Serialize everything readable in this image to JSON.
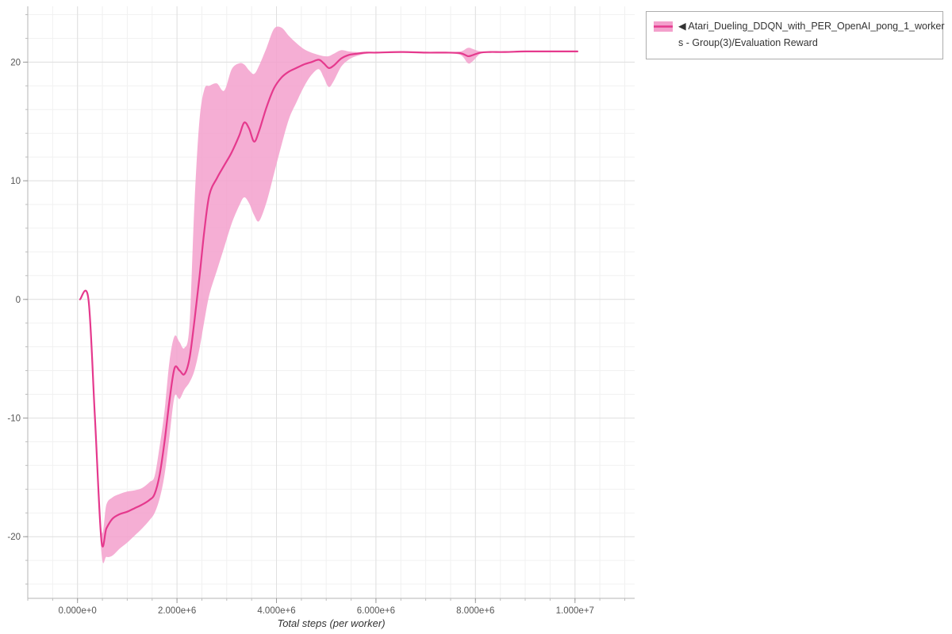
{
  "colors": {
    "line": "#e5398d",
    "band": "#f3a0cc",
    "grid_major": "#e0e0e0",
    "grid_minor": "#f1f1f1",
    "axis": "#b5b5b5",
    "tick_text": "#555555",
    "axis_title_text": "#333333"
  },
  "legend": {
    "line1": "◀ Atari_Dueling_DDQN_with_PER_OpenAI_pong_1_worker",
    "line2": "s - Group(3)/Evaluation Reward"
  },
  "chart_data": {
    "type": "line",
    "title": "",
    "xlabel": "Total steps (per worker)",
    "ylabel": "",
    "grid": true,
    "legend_position": "outside-top-right",
    "xlim": [
      -1000000,
      11200000
    ],
    "ylim": [
      -25.2,
      24.7
    ],
    "x_minor_step": 500000,
    "y_minor_step": 2,
    "x_ticks": {
      "values": [
        0,
        2000000,
        4000000,
        6000000,
        8000000,
        10000000
      ],
      "labels": [
        "0.000e+0",
        "2.000e+6",
        "4.000e+6",
        "6.000e+6",
        "8.000e+6",
        "1.000e+7"
      ]
    },
    "y_ticks": {
      "values": [
        -20,
        -10,
        0,
        10,
        20
      ],
      "labels": [
        "-20",
        "-10",
        "0",
        "10",
        "20"
      ]
    },
    "series": [
      {
        "name": "Atari_Dueling_DDQN_with_PER_OpenAI_pong_1_workers - Group(3)/Evaluation Reward",
        "color": "#e5398d",
        "band_color": "#f3a0cc",
        "band_opacity": 0.85,
        "x": [
          50000,
          220000,
          350000,
          480000,
          580000,
          700000,
          850000,
          1000000,
          1150000,
          1300000,
          1450000,
          1550000,
          1650000,
          1750000,
          1850000,
          1950000,
          2050000,
          2150000,
          2250000,
          2350000,
          2450000,
          2550000,
          2650000,
          2800000,
          2950000,
          3100000,
          3250000,
          3350000,
          3450000,
          3550000,
          3650000,
          3800000,
          3950000,
          4100000,
          4250000,
          4400000,
          4550000,
          4700000,
          4850000,
          4950000,
          5050000,
          5150000,
          5300000,
          5450000,
          5600000,
          5800000,
          6000000,
          6500000,
          7000000,
          7400000,
          7700000,
          7850000,
          7950000,
          8100000,
          8300000,
          8600000,
          9000000,
          9500000,
          10050000
        ],
        "mean": [
          0,
          0,
          -10,
          -20.3,
          -19.3,
          -18.5,
          -18.1,
          -17.9,
          -17.6,
          -17.3,
          -16.9,
          -16.4,
          -14.8,
          -12,
          -8.5,
          -5.8,
          -6,
          -6.3,
          -5,
          -1.8,
          1.8,
          5.8,
          8.8,
          10.2,
          11.3,
          12.4,
          13.8,
          14.9,
          14.4,
          13.3,
          14.2,
          16.2,
          17.8,
          18.7,
          19.2,
          19.5,
          19.8,
          20,
          20.2,
          19.9,
          19.5,
          19.7,
          20.3,
          20.6,
          20.7,
          20.8,
          20.8,
          20.85,
          20.8,
          20.8,
          20.75,
          20.5,
          20.6,
          20.8,
          20.85,
          20.85,
          20.9,
          20.9,
          20.9
        ],
        "lower": [
          0,
          0,
          -10.5,
          -21.3,
          -21.7,
          -21.6,
          -21,
          -20.5,
          -19.9,
          -19.3,
          -18.6,
          -18,
          -16.8,
          -14.8,
          -11.5,
          -8.2,
          -8.4,
          -7.6,
          -7,
          -6,
          -4.2,
          -1.8,
          0.4,
          2.4,
          4.4,
          6.4,
          7.9,
          8.6,
          8.1,
          7.1,
          6.6,
          8.2,
          10.6,
          13,
          15.2,
          16.6,
          17.9,
          18.9,
          19.4,
          18.7,
          17.9,
          18.4,
          19.6,
          20.2,
          20.5,
          20.7,
          20.75,
          20.8,
          20.75,
          20.75,
          20.6,
          19.9,
          20.1,
          20.7,
          20.8,
          20.8,
          20.85,
          20.85,
          20.85
        ],
        "upper": [
          0,
          0,
          -9.5,
          -19.4,
          -17.3,
          -16.7,
          -16.4,
          -16.2,
          -16.1,
          -15.9,
          -15.4,
          -14.9,
          -12.4,
          -9.4,
          -5.2,
          -3.1,
          -3.6,
          -4.1,
          -2.2,
          8,
          15,
          17.7,
          18,
          18.2,
          17.6,
          19.4,
          19.9,
          19.8,
          19.3,
          19,
          19.7,
          21.2,
          22.8,
          22.9,
          22.2,
          21.6,
          21.1,
          20.8,
          20.6,
          20.5,
          20.5,
          20.7,
          21,
          20.9,
          20.85,
          20.85,
          20.85,
          20.9,
          20.85,
          20.85,
          20.9,
          21.2,
          21.1,
          20.9,
          20.9,
          20.9,
          20.95,
          20.95,
          20.95
        ]
      }
    ]
  }
}
